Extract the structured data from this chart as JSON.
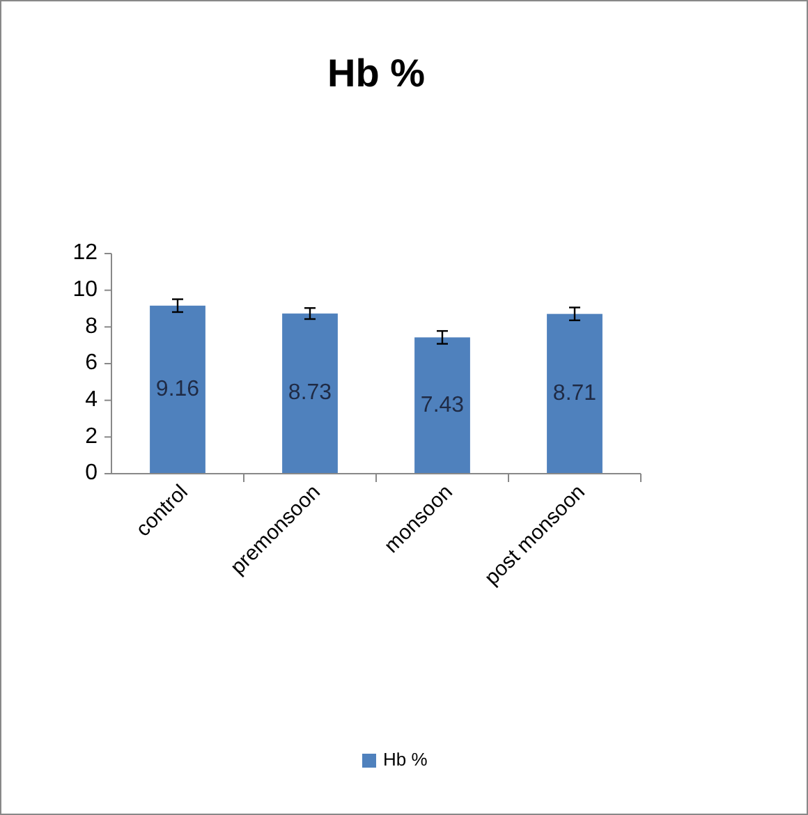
{
  "chart_data": {
    "type": "bar",
    "title": "Hb %",
    "categories": [
      "control",
      "premonsoon",
      "monsoon",
      "post monsoon"
    ],
    "series": [
      {
        "name": "Hb %",
        "color": "#4f81bd",
        "values": [
          9.16,
          8.73,
          7.43,
          8.71
        ],
        "errors": [
          0.35,
          0.3,
          0.35,
          0.35
        ]
      }
    ],
    "ylim": [
      0,
      12
    ],
    "yticks": [
      0,
      2,
      4,
      6,
      8,
      10,
      12
    ],
    "grid": false,
    "legend": "bottom",
    "data_labels": true
  }
}
